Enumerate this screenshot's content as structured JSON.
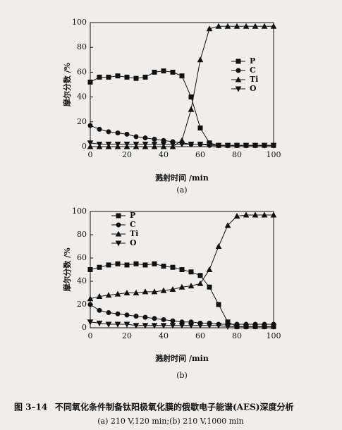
{
  "chart_data": [
    {
      "type": "line",
      "panel_label": "(a)",
      "xlabel": "溅射时间 /min",
      "ylabel": "摩尔分数 /%",
      "x": [
        0,
        5,
        10,
        15,
        20,
        25,
        30,
        35,
        40,
        45,
        50,
        55,
        60,
        65,
        70,
        75,
        80,
        85,
        90,
        95,
        100
      ],
      "series": [
        {
          "name": "P",
          "color": "#111111",
          "marker": "square",
          "values": [
            52,
            56,
            56,
            57,
            56,
            55,
            56,
            60,
            61,
            60,
            57,
            40,
            15,
            3,
            1,
            1,
            1,
            1,
            1,
            1,
            1
          ]
        },
        {
          "name": "C",
          "color": "#111111",
          "marker": "circle",
          "values": [
            17,
            14,
            12,
            11,
            10,
            8,
            7,
            6,
            5,
            4,
            3,
            2,
            2,
            1,
            1,
            1,
            1,
            1,
            1,
            1,
            1
          ]
        },
        {
          "name": "Ti",
          "color": "#111111",
          "marker": "triangle-up",
          "values": [
            0,
            0,
            0,
            0,
            0,
            0,
            0,
            0,
            0,
            0,
            5,
            30,
            70,
            95,
            97,
            97,
            97,
            97,
            97,
            97,
            97
          ]
        },
        {
          "name": "O",
          "color": "#111111",
          "marker": "triangle-down",
          "values": [
            3,
            2,
            2,
            2,
            2,
            2,
            2,
            2,
            2,
            2,
            2,
            2,
            2,
            2,
            1,
            1,
            1,
            1,
            1,
            1,
            1
          ]
        }
      ],
      "xlim": [
        0,
        100
      ],
      "ylim": [
        0,
        100
      ],
      "xticks": [
        0,
        20,
        40,
        60,
        80,
        100
      ],
      "yticks": [
        0,
        20,
        40,
        60,
        80,
        100
      ],
      "legend": "right"
    },
    {
      "type": "line",
      "panel_label": "(b)",
      "xlabel": "溅射时间 /min",
      "ylabel": "摩尔分数 /%",
      "x": [
        0,
        5,
        10,
        15,
        20,
        25,
        30,
        35,
        40,
        45,
        50,
        55,
        60,
        65,
        70,
        75,
        80,
        85,
        90,
        95,
        100
      ],
      "series": [
        {
          "name": "P",
          "color": "#111111",
          "marker": "square",
          "values": [
            50,
            52,
            54,
            55,
            54,
            55,
            54,
            55,
            53,
            52,
            50,
            48,
            45,
            35,
            20,
            5,
            1,
            1,
            1,
            1,
            1
          ]
        },
        {
          "name": "C",
          "color": "#111111",
          "marker": "circle",
          "values": [
            20,
            15,
            13,
            12,
            11,
            10,
            9,
            8,
            7,
            6,
            5,
            5,
            4,
            4,
            3,
            3,
            3,
            3,
            3,
            3,
            3
          ]
        },
        {
          "name": "Ti",
          "color": "#111111",
          "marker": "triangle-up",
          "values": [
            25,
            27,
            28,
            29,
            30,
            30,
            31,
            31,
            32,
            33,
            35,
            36,
            38,
            50,
            70,
            88,
            96,
            97,
            97,
            97,
            97
          ]
        },
        {
          "name": "O",
          "color": "#111111",
          "marker": "triangle-down",
          "values": [
            5,
            4,
            3,
            3,
            3,
            2,
            2,
            2,
            2,
            2,
            2,
            2,
            2,
            2,
            2,
            1,
            1,
            1,
            1,
            1,
            1
          ]
        }
      ],
      "xlim": [
        0,
        100
      ],
      "ylim": [
        0,
        100
      ],
      "xticks": [
        0,
        20,
        40,
        60,
        80,
        100
      ],
      "yticks": [
        0,
        20,
        40,
        60,
        80,
        100
      ],
      "legend": "left"
    }
  ],
  "figure": {
    "label": "图 3–14",
    "caption": "不同氧化条件制备钛阳极氧化膜的俄歇电子能谱(AES)深度分析",
    "subcaption": "(a) 210 V,120 min;(b) 210 V,1000 min"
  }
}
